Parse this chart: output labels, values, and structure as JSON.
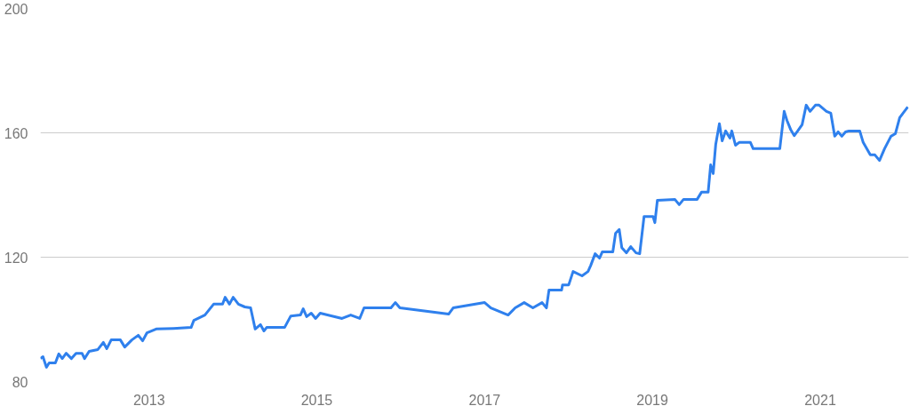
{
  "chart_data": {
    "type": "line",
    "x": [
      "2011-09-16",
      "2011-09-27",
      "2011-10-12",
      "2011-10-24",
      "2011-11-20",
      "2011-12-05",
      "2011-12-20",
      "2012-01-06",
      "2012-01-29",
      "2012-02-18",
      "2012-03-15",
      "2012-03-26",
      "2012-04-15",
      "2012-05-23",
      "2012-06-16",
      "2012-07-01",
      "2012-07-20",
      "2012-08-29",
      "2012-09-17",
      "2012-10-18",
      "2012-11-15",
      "2012-12-04",
      "2012-12-23",
      "2013-02-01",
      "2013-04-17",
      "2013-07-03",
      "2013-07-15",
      "2013-09-01",
      "2013-10-09",
      "2013-11-17",
      "2013-11-28",
      "2013-12-17",
      "2014-01-02",
      "2014-01-25",
      "2014-02-22",
      "2014-03-19",
      "2014-04-08",
      "2014-05-01",
      "2014-05-16",
      "2014-05-28",
      "2014-08-14",
      "2014-09-10",
      "2014-10-22",
      "2014-11-03",
      "2014-11-18",
      "2014-12-08",
      "2014-12-27",
      "2015-01-16",
      "2015-04-21",
      "2015-05-29",
      "2015-07-07",
      "2015-07-26",
      "2015-11-20",
      "2015-12-09",
      "2015-12-29",
      "2016-07-28",
      "2016-08-17",
      "2017-01-01",
      "2017-01-28",
      "2017-04-13",
      "2017-05-14",
      "2017-06-22",
      "2017-07-30",
      "2017-09-08",
      "2017-09-27",
      "2017-10-08",
      "2017-12-02",
      "2017-12-06",
      "2018-01-02",
      "2018-01-21",
      "2018-03-01",
      "2018-03-27",
      "2018-04-08",
      "2018-04-27",
      "2018-05-16",
      "2018-05-28",
      "2018-07-13",
      "2018-07-25",
      "2018-08-10",
      "2018-08-21",
      "2018-09-10",
      "2018-09-29",
      "2018-10-22",
      "2018-11-07",
      "2018-11-26",
      "2019-01-04",
      "2019-01-12",
      "2019-01-23",
      "2019-04-09",
      "2019-04-28",
      "2019-05-17",
      "2019-07-15",
      "2019-08-03",
      "2019-09-01",
      "2019-09-12",
      "2019-09-23",
      "2019-10-04",
      "2019-10-20",
      "2019-11-01",
      "2019-11-16",
      "2019-12-05",
      "2019-12-13",
      "2019-12-29",
      "2020-01-14",
      "2020-03-03",
      "2020-03-15",
      "2020-07-09",
      "2020-07-28",
      "2020-08-09",
      "2020-08-25",
      "2020-09-10",
      "2020-09-25",
      "2020-10-14",
      "2020-11-01",
      "2020-11-18",
      "2020-12-11",
      "2020-12-27",
      "2021-01-28",
      "2021-02-16",
      "2021-03-05",
      "2021-03-20",
      "2021-04-05",
      "2021-04-21",
      "2021-05-06",
      "2021-06-22",
      "2021-07-07",
      "2021-08-07",
      "2021-08-27",
      "2021-09-16",
      "2021-10-08",
      "2021-11-05",
      "2021-11-24",
      "2021-12-13",
      "2022-01-17"
    ],
    "series": [
      {
        "color": "#2f80ed",
        "values": [
          87.4,
          88.0,
          84.6,
          86.0,
          86.0,
          88.9,
          87.4,
          89.1,
          87.4,
          89.1,
          89.1,
          87.4,
          89.7,
          90.3,
          92.6,
          90.6,
          93.4,
          93.4,
          91.1,
          93.4,
          94.9,
          93.1,
          95.7,
          96.9,
          97.1,
          97.4,
          99.7,
          101.4,
          104.9,
          104.9,
          107.1,
          104.9,
          107.1,
          104.9,
          104.0,
          103.7,
          96.9,
          98.3,
          96.3,
          97.4,
          97.4,
          101.1,
          101.4,
          103.4,
          100.9,
          102.0,
          100.3,
          102.0,
          100.3,
          101.4,
          100.3,
          103.7,
          103.7,
          105.4,
          103.7,
          101.7,
          103.7,
          105.4,
          103.7,
          101.4,
          103.7,
          105.4,
          103.7,
          105.4,
          103.7,
          109.4,
          109.4,
          111.1,
          111.1,
          115.4,
          114.0,
          115.4,
          117.4,
          121.1,
          119.7,
          121.7,
          121.7,
          127.7,
          128.9,
          123.1,
          121.4,
          123.4,
          121.4,
          121.1,
          133.1,
          133.1,
          131.1,
          138.3,
          138.6,
          136.9,
          138.6,
          138.6,
          140.9,
          140.9,
          149.7,
          146.9,
          156.3,
          162.9,
          157.4,
          160.6,
          158.3,
          160.6,
          156.0,
          156.9,
          156.9,
          154.9,
          154.9,
          166.9,
          164.0,
          161.1,
          159.1,
          160.6,
          162.6,
          168.9,
          166.9,
          168.9,
          168.9,
          166.9,
          166.3,
          158.9,
          160.3,
          158.9,
          160.3,
          160.6,
          160.6,
          156.9,
          152.9,
          152.9,
          151.1,
          154.9,
          158.9,
          159.7,
          164.9,
          168.3
        ]
      }
    ],
    "xlim": [
      "2011-09-16",
      "2022-01-21"
    ],
    "xticks": [
      {
        "value": "2013-01-01",
        "label": "2013"
      },
      {
        "value": "2015-01-01",
        "label": "2015"
      },
      {
        "value": "2017-01-01",
        "label": "2017"
      },
      {
        "value": "2019-01-01",
        "label": "2019"
      },
      {
        "value": "2021-01-01",
        "label": "2021"
      }
    ],
    "ylim": [
      80,
      200
    ],
    "yticks": [
      80,
      120,
      160,
      200
    ],
    "grid": "y",
    "line_style": "solid",
    "marker": "none"
  }
}
